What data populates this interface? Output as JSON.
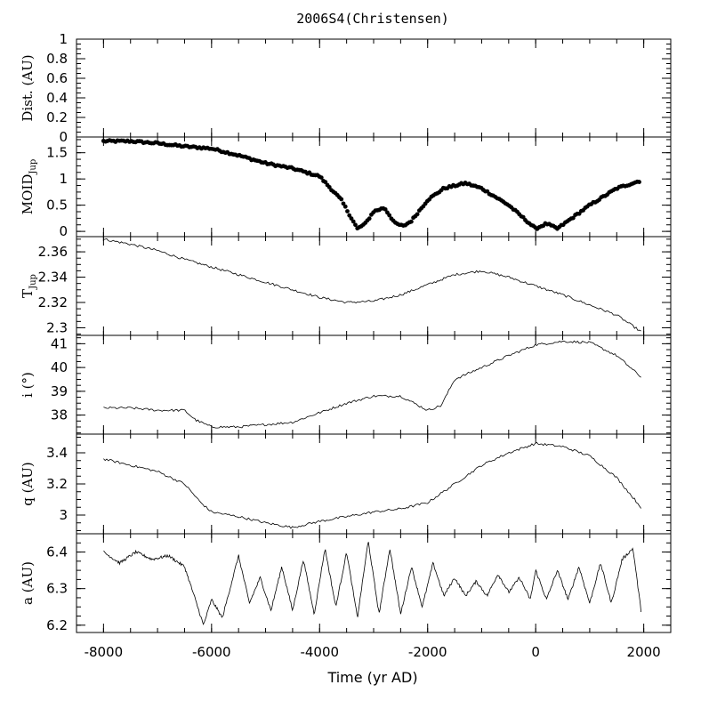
{
  "chart_data": {
    "type": "line",
    "title": "2006S4(Christensen)",
    "xlabel": "Time (yr AD)",
    "xlim": [
      -8500,
      2500
    ],
    "xticks": [
      -8000,
      -6000,
      -4000,
      -2000,
      0,
      2000
    ],
    "xtick_labels": [
      "-8000",
      "-6000",
      "-4000",
      "-2000",
      "0",
      "2000"
    ],
    "panels": [
      {
        "id": "dist",
        "ylabel": "Dist. (AU)",
        "ylabel_sub": "",
        "ylim": [
          0,
          1
        ],
        "yticks": [
          0,
          0.2,
          0.4,
          0.6,
          0.8,
          1
        ],
        "ytick_labels": [
          "0",
          "0.2",
          "0.4",
          "0.6",
          "0.8",
          "1"
        ],
        "style": "line",
        "x": [],
        "y": []
      },
      {
        "id": "moid",
        "ylabel": "MOID",
        "ylabel_sub": "Jup",
        "ylim": [
          -0.1,
          1.8
        ],
        "yticks": [
          0,
          0.5,
          1,
          1.5
        ],
        "ytick_labels": [
          "0",
          "0.5",
          "1",
          "1.5"
        ],
        "style": "points",
        "x": [
          -8000,
          -7500,
          -7000,
          -6500,
          -6000,
          -5500,
          -5000,
          -4500,
          -4000,
          -3600,
          -3300,
          -3150,
          -3000,
          -2800,
          -2600,
          -2450,
          -2300,
          -2000,
          -1700,
          -1300,
          -1000,
          -500,
          0,
          200,
          400,
          1000,
          1500,
          1950
        ],
        "y": [
          1.72,
          1.72,
          1.68,
          1.62,
          1.58,
          1.45,
          1.3,
          1.2,
          1.05,
          0.6,
          0.05,
          0.15,
          0.38,
          0.45,
          0.15,
          0.1,
          0.2,
          0.6,
          0.82,
          0.92,
          0.82,
          0.5,
          0.05,
          0.15,
          0.05,
          0.5,
          0.82,
          0.97
        ]
      },
      {
        "id": "tjup",
        "ylabel": "T",
        "ylabel_sub": "Jup",
        "ylim": [
          2.294,
          2.372
        ],
        "yticks": [
          2.3,
          2.32,
          2.34,
          2.36
        ],
        "ytick_labels": [
          "2.3",
          "2.32",
          "2.34",
          "2.36"
        ],
        "style": "line",
        "x": [
          -8000,
          -7500,
          -7000,
          -6500,
          -6000,
          -5500,
          -5000,
          -4500,
          -4000,
          -3500,
          -3000,
          -2500,
          -2000,
          -1500,
          -1000,
          -500,
          0,
          500,
          1000,
          1500,
          1950
        ],
        "y": [
          2.37,
          2.366,
          2.361,
          2.354,
          2.348,
          2.342,
          2.336,
          2.33,
          2.324,
          2.32,
          2.321,
          2.326,
          2.334,
          2.342,
          2.345,
          2.34,
          2.333,
          2.326,
          2.318,
          2.31,
          2.297
        ]
      },
      {
        "id": "incl",
        "ylabel": "i (°)",
        "ylabel_sub": "",
        "ylim": [
          37.2,
          41.35
        ],
        "yticks": [
          38,
          39,
          40,
          41
        ],
        "ytick_labels": [
          "38",
          "39",
          "40",
          "41"
        ],
        "style": "line",
        "x": [
          -8000,
          -7500,
          -7000,
          -6500,
          -6300,
          -6000,
          -5500,
          -5000,
          -4500,
          -4000,
          -3500,
          -3000,
          -2500,
          -2000,
          -1750,
          -1500,
          -1000,
          -500,
          0,
          500,
          1000,
          1500,
          1950
        ],
        "y": [
          38.3,
          38.3,
          38.2,
          38.2,
          37.8,
          37.5,
          37.5,
          37.6,
          37.7,
          38.1,
          38.5,
          38.8,
          38.8,
          38.2,
          38.4,
          39.5,
          40.0,
          40.5,
          40.95,
          41.1,
          41.05,
          40.5,
          39.6
        ]
      },
      {
        "id": "q",
        "ylabel": "q (AU)",
        "ylabel_sub": "",
        "ylim": [
          2.88,
          3.52
        ],
        "yticks": [
          3,
          3.2,
          3.4
        ],
        "ytick_labels": [
          "3",
          "3.2",
          "3.4"
        ],
        "style": "line",
        "x": [
          -8000,
          -7500,
          -7000,
          -6500,
          -6200,
          -6000,
          -5500,
          -5000,
          -4500,
          -4000,
          -3500,
          -3000,
          -2500,
          -2000,
          -1500,
          -1000,
          -500,
          0,
          500,
          1000,
          1500,
          1950
        ],
        "y": [
          3.36,
          3.32,
          3.28,
          3.2,
          3.08,
          3.02,
          2.99,
          2.95,
          2.92,
          2.96,
          2.99,
          3.02,
          3.04,
          3.08,
          3.2,
          3.32,
          3.4,
          3.46,
          3.44,
          3.38,
          3.24,
          3.05
        ]
      },
      {
        "id": "a",
        "ylabel": "a (AU)",
        "ylabel_sub": "",
        "ylim": [
          6.18,
          6.45
        ],
        "yticks": [
          6.2,
          6.3,
          6.4
        ],
        "ytick_labels": [
          "6.2",
          "6.3",
          "6.4"
        ],
        "style": "line",
        "x": [
          -8000,
          -7700,
          -7400,
          -7100,
          -6800,
          -6500,
          -6300,
          -6150,
          -6000,
          -5800,
          -5500,
          -5300,
          -5100,
          -4900,
          -4700,
          -4500,
          -4300,
          -4100,
          -3900,
          -3700,
          -3500,
          -3300,
          -3100,
          -2900,
          -2700,
          -2500,
          -2300,
          -2100,
          -1900,
          -1700,
          -1500,
          -1300,
          -1100,
          -900,
          -700,
          -500,
          -300,
          -100,
          0,
          200,
          400,
          600,
          800,
          1000,
          1200,
          1400,
          1600,
          1800,
          1950
        ],
        "y": [
          6.4,
          6.37,
          6.4,
          6.38,
          6.39,
          6.36,
          6.27,
          6.2,
          6.27,
          6.22,
          6.39,
          6.26,
          6.33,
          6.24,
          6.36,
          6.24,
          6.38,
          6.23,
          6.41,
          6.25,
          6.4,
          6.22,
          6.43,
          6.23,
          6.41,
          6.23,
          6.36,
          6.25,
          6.37,
          6.28,
          6.33,
          6.28,
          6.32,
          6.28,
          6.34,
          6.29,
          6.33,
          6.27,
          6.35,
          6.27,
          6.35,
          6.27,
          6.36,
          6.26,
          6.37,
          6.26,
          6.38,
          6.41,
          6.24
        ]
      }
    ]
  }
}
